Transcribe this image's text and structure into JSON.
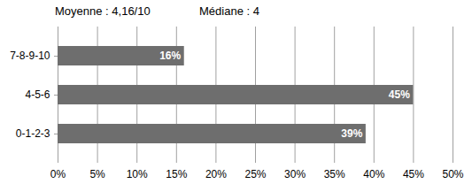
{
  "chart_data": {
    "type": "bar",
    "orientation": "horizontal",
    "annotations": [
      "Moyenne : 4,16/10",
      "Médiane : 4"
    ],
    "categories": [
      "7-8-9-10",
      "4-5-6",
      "0-1-2-3"
    ],
    "values": [
      16,
      45,
      39
    ],
    "value_labels": [
      "16%",
      "45%",
      "39%"
    ],
    "data_labels": true,
    "color": "#6e6e6e",
    "xlim": [
      0,
      50
    ],
    "xticks": [
      {
        "value": 0,
        "label": "0%"
      },
      {
        "value": 5,
        "label": "5%"
      },
      {
        "value": 10,
        "label": "10%"
      },
      {
        "value": 15,
        "label": "15%"
      },
      {
        "value": 20,
        "label": "20%"
      },
      {
        "value": 25,
        "label": "25%"
      },
      {
        "value": 30,
        "label": "30%"
      },
      {
        "value": 35,
        "label": "35%"
      },
      {
        "value": 40,
        "label": "40%"
      },
      {
        "value": 45,
        "label": "45%"
      },
      {
        "value": 50,
        "label": "50%"
      }
    ],
    "grid": true
  }
}
